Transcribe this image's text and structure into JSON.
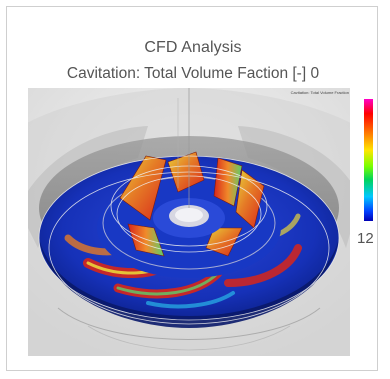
{
  "figure": {
    "title": "CFD Analysis",
    "subtitle": "Cavitation: Total Volume Faction [-] 0",
    "legend_caption": "Cavitation: Total Volume Fraction",
    "scale_max": "12",
    "icons": {
      "render": "impeller-cfd-render",
      "colorbar": "colorbar-legend"
    },
    "colors": {
      "impeller_blue": "#1631b8",
      "cavitation_red": "#e0301e",
      "cavitation_yellow": "#e8d43a",
      "cavitation_green": "#5ccf6a",
      "casing_gray": "#8a8a8a"
    }
  }
}
